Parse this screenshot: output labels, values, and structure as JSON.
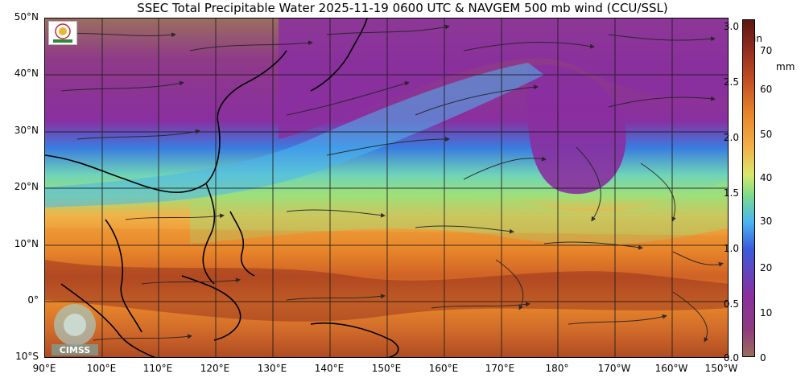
{
  "title": "SSEC Total Precipitable Water  2025-11-19 0600 UTC & NAVGEM 500 mb wind (CCU/SSL)",
  "map": {
    "lat_labels": [
      "50°N",
      "40°N",
      "30°N",
      "20°N",
      "10°N",
      "0°",
      "10°S"
    ],
    "lon_labels": [
      "90°E",
      "100°E",
      "110°E",
      "120°E",
      "130°E",
      "140°E",
      "150°E",
      "160°E",
      "170°E",
      "180°",
      "170°W",
      "160°W",
      "150°W"
    ]
  },
  "colorbar": {
    "unit_in": "in",
    "unit_mm": "mm",
    "in_ticks": [
      "3.0",
      "2.5",
      "2.0",
      "1.5",
      "1.0",
      "0.5",
      "0.0"
    ],
    "mm_ticks": [
      "70",
      "60",
      "50",
      "40",
      "30",
      "20",
      "10",
      "0"
    ]
  },
  "logos": {
    "top_logo": "weather-agency-logo",
    "bottom_logo": "CIMSS"
  },
  "colors": {
    "dry": "#8a2fa0",
    "moist_mid": "#7ddc8a",
    "wet": "#e8862a",
    "very_wet": "#8e2a1e",
    "land_dry": "#9a6e5e"
  }
}
